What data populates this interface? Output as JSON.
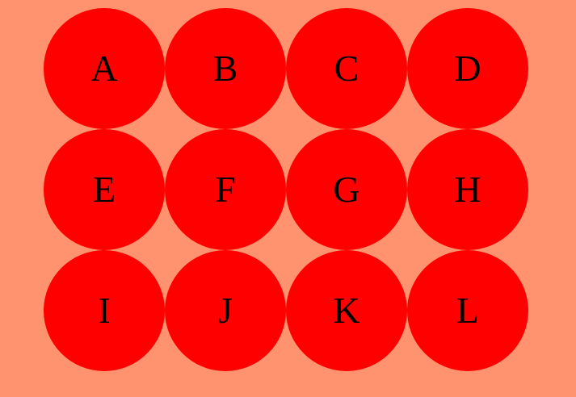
{
  "colors": {
    "background": "#ff9370",
    "circle": "#ff0000",
    "text": "#000000"
  },
  "grid": {
    "rows": 3,
    "cols": 4,
    "cells": [
      "A",
      "B",
      "C",
      "D",
      "E",
      "F",
      "G",
      "H",
      "I",
      "J",
      "K",
      "L"
    ]
  }
}
